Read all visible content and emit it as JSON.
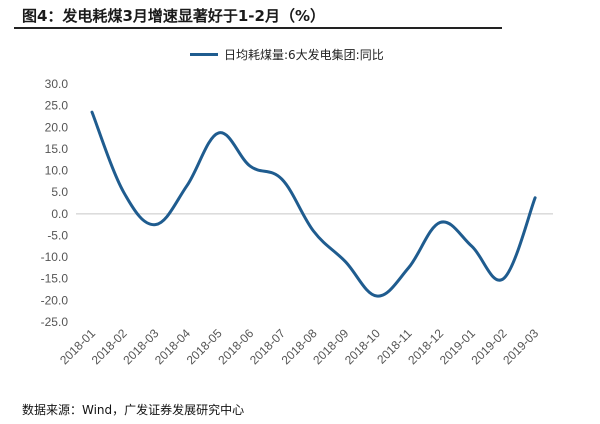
{
  "chart_data": {
    "type": "line",
    "title": "图4：发电耗煤3月增速显著好于1-2月（%）",
    "categories": [
      "2018-01",
      "2018-02",
      "2018-03",
      "2018-04",
      "2018-05",
      "2018-06",
      "2018-07",
      "2018-08",
      "2018-09",
      "2018-10",
      "2018-11",
      "2018-12",
      "2019-01",
      "2019-02",
      "2019-03"
    ],
    "series": [
      {
        "name": "日均耗煤量:6大发电集团:同比",
        "color": "#1f5c8f",
        "values": [
          23.5,
          5.0,
          -2.5,
          6.5,
          18.7,
          11.0,
          8.0,
          -4.0,
          -11.0,
          -19.0,
          -12.5,
          -2.0,
          -7.5,
          -15.0,
          3.7
        ]
      }
    ],
    "yticks": [
      "30.0",
      "25.0",
      "20.0",
      "15.0",
      "10.0",
      "5.0",
      "0.0",
      "-5.0",
      "-10.0",
      "-15.0",
      "-20.0",
      "-25.0"
    ],
    "ylim": [
      -25,
      30
    ],
    "xlabel": "",
    "ylabel": "",
    "legend": "top-center",
    "grid": false
  },
  "source": "数据来源：Wind，广发证券发展研究中心"
}
